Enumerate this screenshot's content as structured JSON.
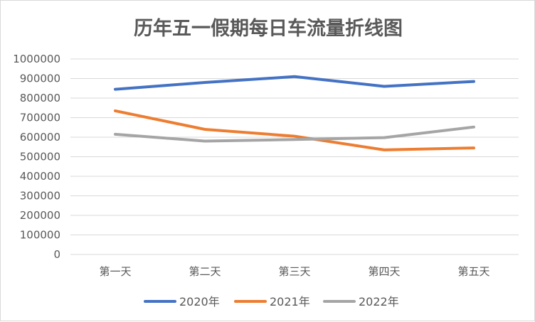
{
  "chart_data": {
    "type": "line",
    "title": "历年五一假期每日车流量折线图",
    "xlabel": "",
    "ylabel": "",
    "categories": [
      "第一天",
      "第二天",
      "第三天",
      "第四天",
      "第五天"
    ],
    "ylim": [
      0,
      1000000
    ],
    "yticks": [
      0,
      100000,
      200000,
      300000,
      400000,
      500000,
      600000,
      700000,
      800000,
      900000,
      1000000
    ],
    "ytick_labels": [
      "0",
      "100000",
      "200000",
      "300000",
      "400000",
      "500000",
      "600000",
      "700000",
      "800000",
      "900000",
      "1000000"
    ],
    "grid": true,
    "legend_position": "bottom",
    "series": [
      {
        "name": "2020年",
        "color": "#4472c4",
        "values": [
          845000,
          880000,
          910000,
          860000,
          885000
        ]
      },
      {
        "name": "2021年",
        "color": "#ed7d31",
        "values": [
          735000,
          640000,
          605000,
          535000,
          545000
        ]
      },
      {
        "name": "2022年",
        "color": "#a5a5a5",
        "values": [
          615000,
          580000,
          588000,
          598000,
          652000
        ]
      }
    ]
  },
  "colors": {
    "gridline": "#d9d9d9",
    "text": "#595959",
    "border": "#d9d9d9"
  }
}
